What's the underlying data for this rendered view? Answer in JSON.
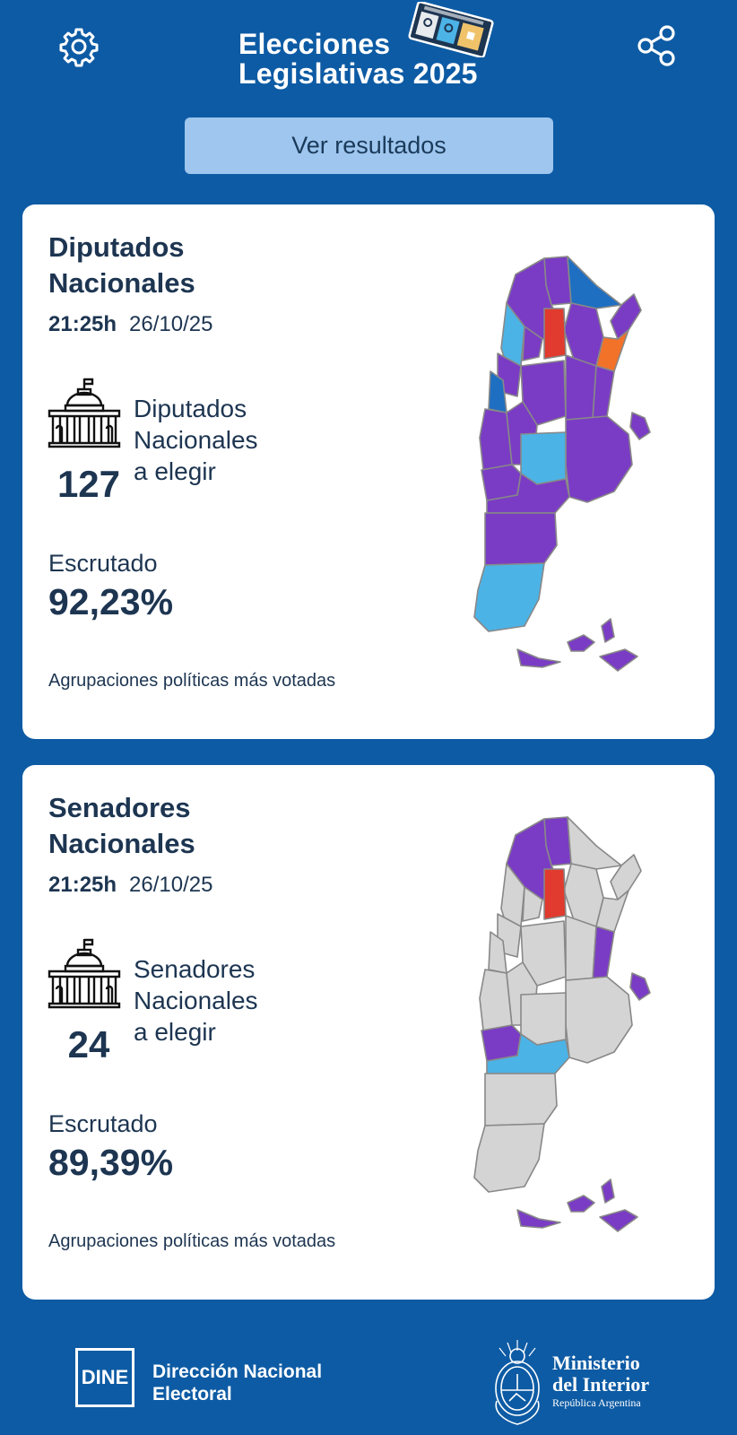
{
  "header": {
    "title_line1": "Elecciones",
    "title_line2": "Legislativas 2025",
    "settings_icon": "gear-icon",
    "share_icon": "share-icon"
  },
  "results_button": {
    "label": "Ver resultados"
  },
  "cards": [
    {
      "title": "Diputados Nacionales",
      "time": "21:25h",
      "date": "26/10/25",
      "seats": "127",
      "seats_label_line1": "Diputados",
      "seats_label_line2": "Nacionales",
      "seats_label_line3": "a elegir",
      "scrutinized_label": "Escrutado",
      "scrutinized_value": "92,23%",
      "parties_label": "Agrupaciones políticas más votadas"
    },
    {
      "title": "Senadores Nacionales",
      "time": "21:25h",
      "date": "26/10/25",
      "seats": "24",
      "seats_label_line1": "Senadores",
      "seats_label_line2": "Nacionales",
      "seats_label_line3": "a elegir",
      "scrutinized_label": "Escrutado",
      "scrutinized_value": "89,39%",
      "parties_label": "Agrupaciones políticas más votadas"
    }
  ],
  "colors": {
    "background": "#0d5ba4",
    "button": "#9ec6ee",
    "purple": "#7a3cc4",
    "light_blue": "#4cb3e6",
    "blue": "#1e6fc2",
    "red": "#e03b2e",
    "orange": "#f2722a",
    "gray": "#d4d4d4"
  },
  "footer": {
    "dine_logo": "DINE",
    "dine_line1": "Dirección Nacional",
    "dine_line2": "Electoral",
    "ministry_line1": "Ministerio",
    "ministry_line2": "del Interior",
    "ministry_sub": "República Argentina"
  }
}
